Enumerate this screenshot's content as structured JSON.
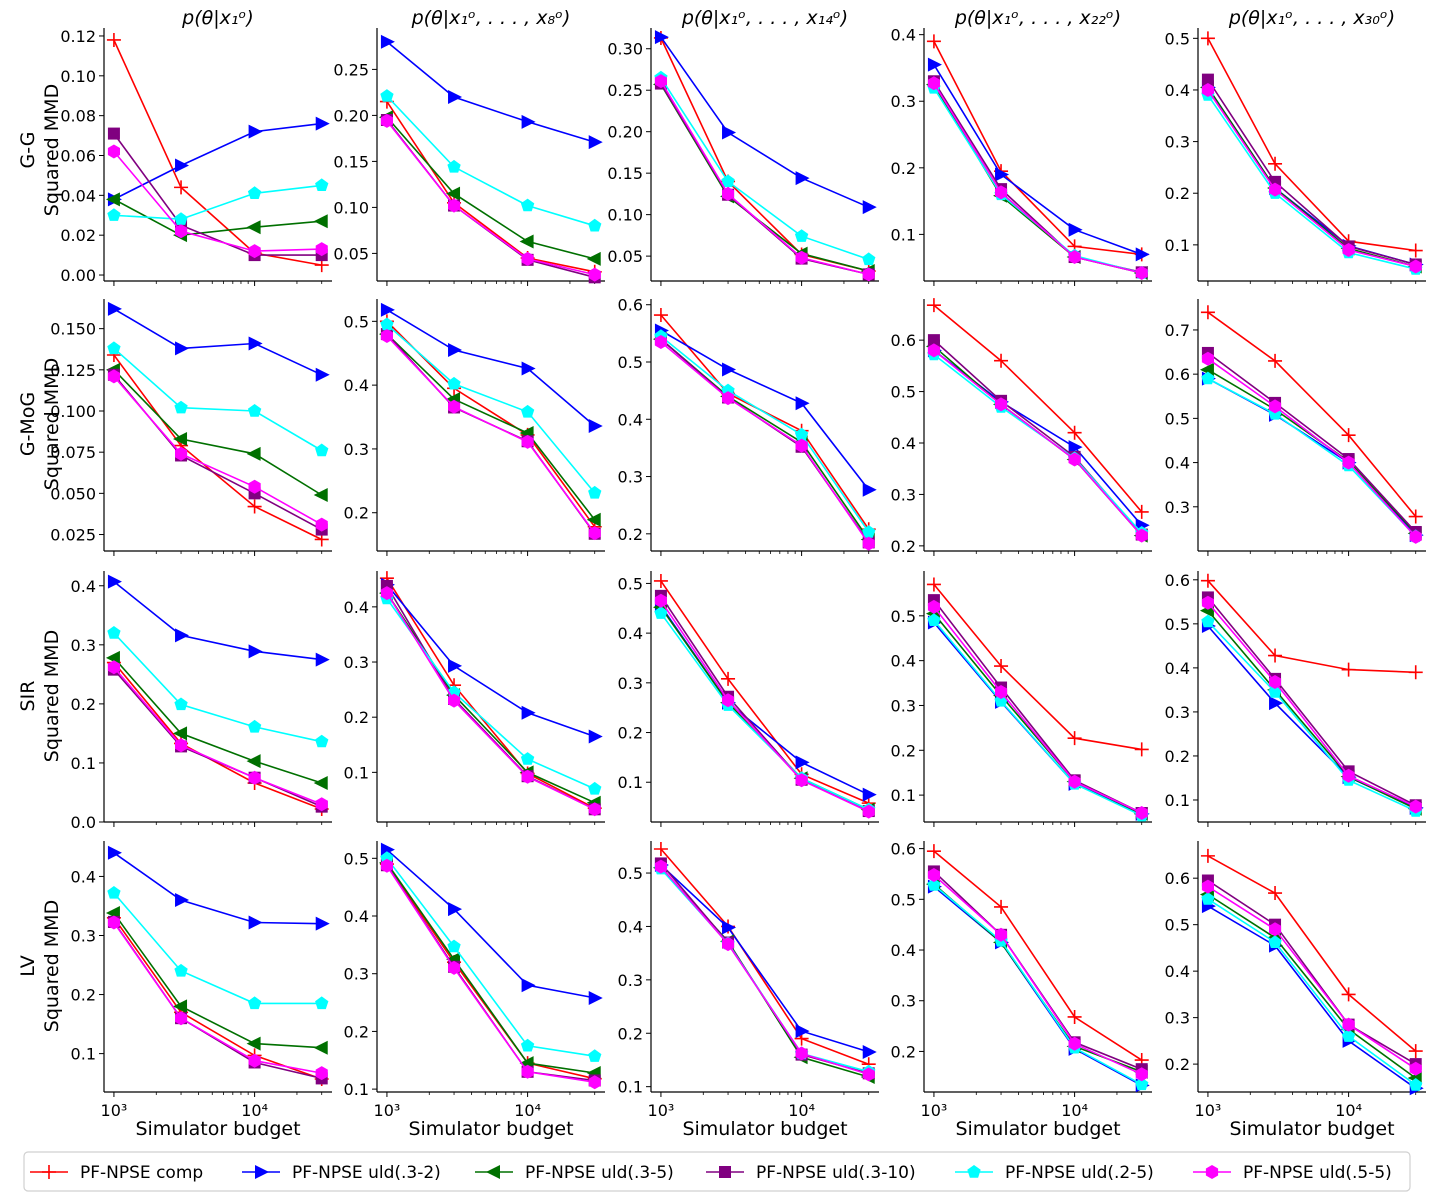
{
  "figure": {
    "col_titles": [
      "p(θ|x₁ᵒ)",
      "p(θ|x₁ᵒ, . . . , x₈ᵒ)",
      "p(θ|x₁ᵒ, . . . , x₁₄ᵒ)",
      "p(θ|x₁ᵒ, . . . , x₂₂ᵒ)",
      "p(θ|x₁ᵒ, . . . , x₃₀ᵒ)"
    ],
    "row_labels": [
      "G-G",
      "G-MoG",
      "SIR",
      "LV"
    ],
    "ylabel": "Squared MMD",
    "xlabel": "Simulator budget"
  },
  "legend": {
    "entries": [
      {
        "label": "PF-NPSE comp",
        "color": "#ff0000",
        "marker": "plus"
      },
      {
        "label": "PF-NPSE uld(.3-2)",
        "color": "#0000ff",
        "marker": "triangle-right"
      },
      {
        "label": "PF-NPSE uld(.3-5)",
        "color": "#007000",
        "marker": "triangle-left"
      },
      {
        "label": "PF-NPSE  uld(.3-10)",
        "color": "#800080",
        "marker": "square"
      },
      {
        "label": "PF-NPSE  uld(.2-5)",
        "color": "#00ffff",
        "marker": "pentagon"
      },
      {
        "label": "PF-NPSE  uld(.5-5)",
        "color": "#ff00ff",
        "marker": "hexagon"
      }
    ]
  },
  "chart_data": {
    "type": "line",
    "x": [
      1000,
      3000,
      10000,
      30000
    ],
    "x_scale": "log",
    "x_ticks": [
      {
        "value": 1000,
        "label": "10³"
      },
      {
        "value": 10000,
        "label": "10⁴"
      }
    ],
    "series_names": [
      "PF-NPSE comp",
      "PF-NPSE uld(.3-2)",
      "PF-NPSE uld(.3-5)",
      "PF-NPSE  uld(.3-10)",
      "PF-NPSE  uld(.2-5)",
      "PF-NPSE  uld(.5-5)"
    ],
    "panels": [
      [
        {
          "ylim": [
            -0.003,
            0.124
          ],
          "yticks": [
            "0.00",
            "0.02",
            "0.04",
            "0.06",
            "0.08",
            "0.10",
            "0.12"
          ],
          "series": [
            [
              0.118,
              0.044,
              0.011,
              0.005
            ],
            [
              0.038,
              0.055,
              0.072,
              0.076
            ],
            [
              0.038,
              0.02,
              0.024,
              0.027
            ],
            [
              0.071,
              0.025,
              0.01,
              0.01
            ],
            [
              0.03,
              0.028,
              0.041,
              0.045
            ],
            [
              0.062,
              0.022,
              0.012,
              0.013
            ]
          ]
        },
        {
          "ylim": [
            0.02,
            0.295
          ],
          "yticks": [
            "0.05",
            "0.10",
            "0.15",
            "0.20",
            "0.25"
          ],
          "series": [
            [
              0.215,
              0.105,
              0.045,
              0.03
            ],
            [
              0.28,
              0.22,
              0.193,
              0.171
            ],
            [
              0.198,
              0.115,
              0.063,
              0.044
            ],
            [
              0.195,
              0.102,
              0.043,
              0.024
            ],
            [
              0.221,
              0.144,
              0.102,
              0.08
            ],
            [
              0.194,
              0.102,
              0.044,
              0.027
            ]
          ]
        },
        {
          "ylim": [
            0.02,
            0.325
          ],
          "yticks": [
            "0.05",
            "0.10",
            "0.15",
            "0.20",
            "0.25",
            "0.30"
          ],
          "series": [
            [
              0.313,
              0.14,
              0.052,
              0.032
            ],
            [
              0.314,
              0.199,
              0.144,
              0.109
            ],
            [
              0.257,
              0.122,
              0.053,
              0.032
            ],
            [
              0.258,
              0.124,
              0.047,
              0.028
            ],
            [
              0.265,
              0.14,
              0.074,
              0.046
            ],
            [
              0.261,
              0.125,
              0.048,
              0.028
            ]
          ]
        },
        {
          "ylim": [
            0.03,
            0.41
          ],
          "yticks": [
            "0.1",
            "0.2",
            "0.3",
            "0.4"
          ],
          "series": [
            [
              0.39,
              0.195,
              0.082,
              0.07
            ],
            [
              0.355,
              0.19,
              0.107,
              0.07
            ],
            [
              0.325,
              0.158,
              0.066,
              0.042
            ],
            [
              0.33,
              0.168,
              0.066,
              0.043
            ],
            [
              0.32,
              0.16,
              0.068,
              0.042
            ],
            [
              0.327,
              0.163,
              0.066,
              0.042
            ]
          ]
        },
        {
          "ylim": [
            0.03,
            0.52
          ],
          "yticks": [
            "0.1",
            "0.2",
            "0.3",
            "0.4",
            "0.5"
          ],
          "series": [
            [
              0.5,
              0.257,
              0.107,
              0.089
            ],
            [
              0.405,
              0.21,
              0.098,
              0.062
            ],
            [
              0.405,
              0.21,
              0.093,
              0.058
            ],
            [
              0.42,
              0.222,
              0.097,
              0.062
            ],
            [
              0.39,
              0.2,
              0.085,
              0.053
            ],
            [
              0.4,
              0.207,
              0.09,
              0.058
            ]
          ]
        }
      ],
      [
        {
          "ylim": [
            0.015,
            0.168
          ],
          "yticks": [
            "0.025",
            "0.050",
            "0.075",
            "0.100",
            "0.125",
            "0.150"
          ],
          "series": [
            [
              0.134,
              0.079,
              0.042,
              0.022
            ],
            [
              0.162,
              0.138,
              0.141,
              0.122
            ],
            [
              0.125,
              0.083,
              0.074,
              0.049
            ],
            [
              0.122,
              0.073,
              0.05,
              0.028
            ],
            [
              0.138,
              0.102,
              0.1,
              0.076
            ],
            [
              0.121,
              0.074,
              0.054,
              0.031
            ]
          ]
        },
        {
          "ylim": [
            0.14,
            0.535
          ],
          "yticks": [
            "0.2",
            "0.3",
            "0.4",
            "0.5"
          ],
          "series": [
            [
              0.5,
              0.395,
              0.322,
              0.178
            ],
            [
              0.518,
              0.455,
              0.426,
              0.336
            ],
            [
              0.48,
              0.378,
              0.325,
              0.189
            ],
            [
              0.48,
              0.365,
              0.312,
              0.167
            ],
            [
              0.495,
              0.402,
              0.358,
              0.231
            ],
            [
              0.477,
              0.366,
              0.311,
              0.168
            ]
          ]
        },
        {
          "ylim": [
            0.17,
            0.61
          ],
          "yticks": [
            "0.2",
            "0.3",
            "0.4",
            "0.5",
            "0.6"
          ],
          "series": [
            [
              0.582,
              0.445,
              0.38,
              0.208
            ],
            [
              0.555,
              0.487,
              0.428,
              0.277
            ],
            [
              0.54,
              0.44,
              0.36,
              0.19
            ],
            [
              0.54,
              0.438,
              0.352,
              0.185
            ],
            [
              0.545,
              0.45,
              0.373,
              0.203
            ],
            [
              0.535,
              0.437,
              0.354,
              0.183
            ]
          ]
        },
        {
          "ylim": [
            0.19,
            0.68
          ],
          "yticks": [
            "0.2",
            "0.3",
            "0.4",
            "0.5",
            "0.6"
          ],
          "series": [
            [
              0.668,
              0.56,
              0.42,
              0.266
            ],
            [
              0.58,
              0.48,
              0.392,
              0.24
            ],
            [
              0.588,
              0.475,
              0.368,
              0.22
            ],
            [
              0.6,
              0.482,
              0.373,
              0.222
            ],
            [
              0.572,
              0.47,
              0.37,
              0.225
            ],
            [
              0.58,
              0.475,
              0.368,
              0.22
            ]
          ]
        },
        {
          "ylim": [
            0.2,
            0.77
          ],
          "yticks": [
            "0.3",
            "0.4",
            "0.5",
            "0.6",
            "0.7"
          ],
          "series": [
            [
              0.74,
              0.63,
              0.462,
              0.278
            ],
            [
              0.59,
              0.508,
              0.4,
              0.236
            ],
            [
              0.61,
              0.52,
              0.403,
              0.24
            ],
            [
              0.648,
              0.535,
              0.408,
              0.243
            ],
            [
              0.59,
              0.51,
              0.393,
              0.233
            ],
            [
              0.635,
              0.527,
              0.4,
              0.232
            ]
          ]
        }
      ],
      [
        {
          "ylim": [
            0.0,
            0.425
          ],
          "yticks": [
            "0.0",
            "0.1",
            "0.2",
            "0.3",
            "0.4"
          ],
          "series": [
            [
              0.27,
              0.133,
              0.066,
              0.022
            ],
            [
              0.407,
              0.316,
              0.289,
              0.275
            ],
            [
              0.278,
              0.15,
              0.103,
              0.066
            ],
            [
              0.258,
              0.128,
              0.075,
              0.026
            ],
            [
              0.32,
              0.199,
              0.161,
              0.136
            ],
            [
              0.262,
              0.13,
              0.075,
              0.03
            ]
          ]
        },
        {
          "ylim": [
            0.01,
            0.465
          ],
          "yticks": [
            "0.1",
            "0.2",
            "0.3",
            "0.4"
          ],
          "series": [
            [
              0.452,
              0.258,
              0.098,
              0.035
            ],
            [
              0.44,
              0.293,
              0.208,
              0.165
            ],
            [
              0.425,
              0.24,
              0.1,
              0.045
            ],
            [
              0.438,
              0.233,
              0.093,
              0.033
            ],
            [
              0.415,
              0.245,
              0.124,
              0.07
            ],
            [
              0.425,
              0.23,
              0.092,
              0.033
            ]
          ]
        },
        {
          "ylim": [
            0.02,
            0.525
          ],
          "yticks": [
            "0.1",
            "0.2",
            "0.3",
            "0.4",
            "0.5"
          ],
          "series": [
            [
              0.505,
              0.308,
              0.116,
              0.058
            ],
            [
              0.455,
              0.26,
              0.14,
              0.075
            ],
            [
              0.452,
              0.26,
              0.108,
              0.045
            ],
            [
              0.475,
              0.272,
              0.105,
              0.042
            ],
            [
              0.44,
              0.255,
              0.108,
              0.045
            ],
            [
              0.465,
              0.265,
              0.104,
              0.041
            ]
          ]
        },
        {
          "ylim": [
            0.04,
            0.6
          ],
          "yticks": [
            "0.1",
            "0.2",
            "0.3",
            "0.4",
            "0.5"
          ],
          "series": [
            [
              0.57,
              0.388,
              0.227,
              0.202
            ],
            [
              0.485,
              0.308,
              0.125,
              0.058
            ],
            [
              0.505,
              0.322,
              0.13,
              0.058
            ],
            [
              0.535,
              0.34,
              0.133,
              0.06
            ],
            [
              0.49,
              0.31,
              0.125,
              0.054
            ],
            [
              0.52,
              0.33,
              0.13,
              0.06
            ]
          ]
        },
        {
          "ylim": [
            0.05,
            0.62
          ],
          "yticks": [
            "0.1",
            "0.2",
            "0.3",
            "0.4",
            "0.5",
            "0.6"
          ],
          "series": [
            [
              0.598,
              0.428,
              0.396,
              0.39
            ],
            [
              0.495,
              0.32,
              0.152,
              0.082
            ],
            [
              0.53,
              0.35,
              0.153,
              0.08
            ],
            [
              0.56,
              0.375,
              0.165,
              0.088
            ],
            [
              0.505,
              0.345,
              0.145,
              0.075
            ],
            [
              0.548,
              0.368,
              0.155,
              0.085
            ]
          ]
        }
      ],
      [
        {
          "ylim": [
            0.035,
            0.46
          ],
          "yticks": [
            "0.1",
            "0.2",
            "0.3",
            "0.4"
          ],
          "series": [
            [
              0.33,
              0.17,
              0.097,
              0.057
            ],
            [
              0.44,
              0.36,
              0.322,
              0.32
            ],
            [
              0.338,
              0.18,
              0.117,
              0.11
            ],
            [
              0.323,
              0.16,
              0.085,
              0.058
            ],
            [
              0.372,
              0.24,
              0.185,
              0.185
            ],
            [
              0.322,
              0.16,
              0.088,
              0.067
            ]
          ]
        },
        {
          "ylim": [
            0.095,
            0.53
          ],
          "yticks": [
            "0.1",
            "0.2",
            "0.3",
            "0.4",
            "0.5"
          ],
          "series": [
            [
              0.49,
              0.32,
              0.145,
              0.118
            ],
            [
              0.515,
              0.412,
              0.28,
              0.258
            ],
            [
              0.492,
              0.325,
              0.145,
              0.128
            ],
            [
              0.488,
              0.312,
              0.13,
              0.115
            ],
            [
              0.5,
              0.347,
              0.175,
              0.157
            ],
            [
              0.487,
              0.31,
              0.13,
              0.112
            ]
          ]
        },
        {
          "ylim": [
            0.09,
            0.56
          ],
          "yticks": [
            "0.1",
            "0.2",
            "0.3",
            "0.4",
            "0.5"
          ],
          "series": [
            [
              0.545,
              0.4,
              0.19,
              0.142
            ],
            [
              0.515,
              0.398,
              0.204,
              0.165
            ],
            [
              0.51,
              0.372,
              0.155,
              0.118
            ],
            [
              0.518,
              0.37,
              0.16,
              0.125
            ],
            [
              0.508,
              0.368,
              0.162,
              0.128
            ],
            [
              0.512,
              0.367,
              0.162,
              0.123
            ]
          ]
        },
        {
          "ylim": [
            0.12,
            0.615
          ],
          "yticks": [
            "0.2",
            "0.3",
            "0.4",
            "0.5",
            "0.6"
          ],
          "series": [
            [
              0.595,
              0.485,
              0.268,
              0.183
            ],
            [
              0.525,
              0.415,
              0.205,
              0.133
            ],
            [
              0.53,
              0.415,
              0.21,
              0.16
            ],
            [
              0.555,
              0.43,
              0.218,
              0.165
            ],
            [
              0.528,
              0.418,
              0.207,
              0.135
            ],
            [
              0.548,
              0.43,
              0.215,
              0.155
            ]
          ]
        },
        {
          "ylim": [
            0.14,
            0.68
          ],
          "yticks": [
            "0.2",
            "0.3",
            "0.4",
            "0.5",
            "0.6"
          ],
          "series": [
            [
              0.648,
              0.568,
              0.35,
              0.228
            ],
            [
              0.54,
              0.455,
              0.25,
              0.148
            ],
            [
              0.565,
              0.472,
              0.275,
              0.17
            ],
            [
              0.595,
              0.5,
              0.285,
              0.2
            ],
            [
              0.555,
              0.462,
              0.26,
              0.155
            ],
            [
              0.582,
              0.49,
              0.285,
              0.19
            ]
          ]
        }
      ]
    ]
  }
}
